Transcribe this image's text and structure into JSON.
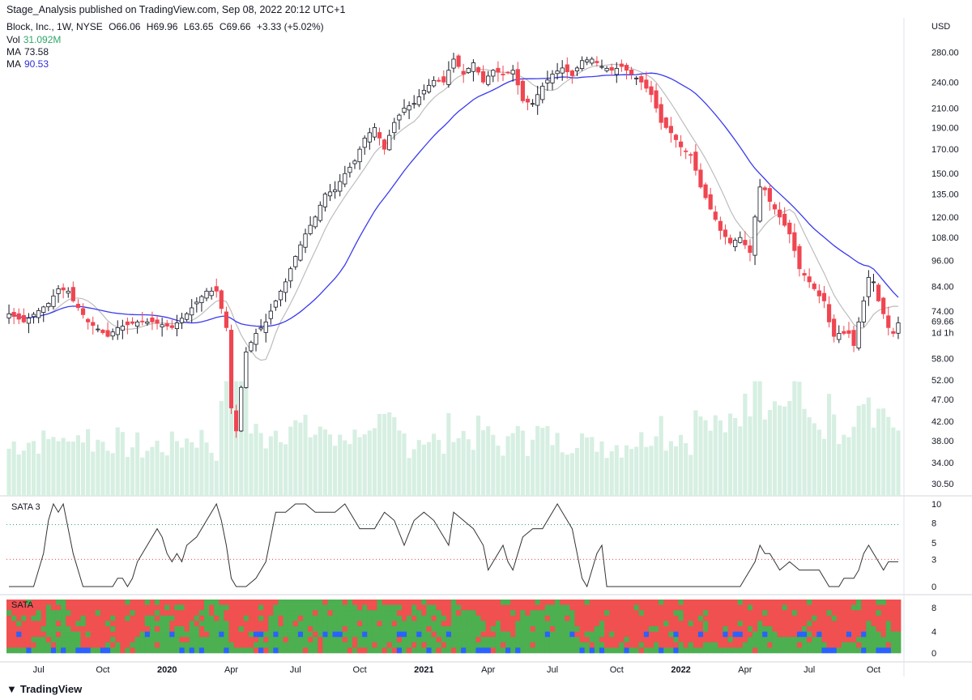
{
  "header": {
    "published": "Stage_Analysis published on TradingView.com, Sep 08, 2022 20:12 UTC+1",
    "symbol": "Block, Inc., 1W, NYSE",
    "ohlc": {
      "o": "O66.06",
      "h": "H69.96",
      "l": "L63.65",
      "c": "C69.66",
      "chg": "+3.33 (+5.02%)"
    },
    "vol_label": "Vol",
    "vol_value": "31.092M",
    "ma1_label": "MA",
    "ma1_value": "73.58",
    "ma2_label": "MA",
    "ma2_value": "90.53"
  },
  "colors": {
    "up": "#ffffff",
    "down": "#ef4651",
    "wick": "#131722",
    "ma_fast": "#bdbdbd",
    "ma_slow": "#3a3aef",
    "volume": "#d6efe2",
    "sata_line": "#333333",
    "sata_high": "#2ea76a",
    "sata_low": "#ef4651",
    "heat_green": "#4caf50",
    "heat_red": "#f05050",
    "heat_blue": "#2962ff"
  },
  "chart_data": [
    {
      "type": "candlestick",
      "title": "Block, Inc., 1W, NYSE",
      "currency_label": "USD",
      "y_ticks": [
        280,
        240,
        210,
        190,
        170,
        150,
        135,
        120,
        108,
        96,
        84,
        74,
        58,
        52,
        47,
        42,
        38,
        34,
        30.5
      ],
      "y_tick_labels": [
        "280.00",
        "240.00",
        "210.00",
        "190.00",
        "170.00",
        "150.00",
        "135.00",
        "120.00",
        "108.00",
        "96.00",
        "84.00",
        "74.00",
        "58.00",
        "52.00",
        "47.00",
        "42.00",
        "38.00",
        "34.00",
        "30.50"
      ],
      "y_scale": "log",
      "last_price_label": "69.66",
      "countdown_label": "1d 1h",
      "x_tick_labels": [
        "Jul",
        "Oct",
        "2020",
        "Apr",
        "Jul",
        "Oct",
        "2021",
        "Apr",
        "Jul",
        "Oct",
        "2022",
        "Apr",
        "Jul",
        "Oct"
      ],
      "x_tick_weeks": [
        6,
        19,
        32,
        45,
        58,
        71,
        84,
        97,
        110,
        123,
        136,
        149,
        162,
        175
      ],
      "price_anchors": [
        [
          0,
          73
        ],
        [
          3,
          70
        ],
        [
          8,
          77
        ],
        [
          10,
          83
        ],
        [
          12,
          82
        ],
        [
          13,
          78
        ],
        [
          16,
          70
        ],
        [
          20,
          65
        ],
        [
          22,
          68
        ],
        [
          26,
          70
        ],
        [
          29,
          70
        ],
        [
          33,
          68
        ],
        [
          36,
          73
        ],
        [
          40,
          82
        ],
        [
          42,
          82
        ],
        [
          43,
          75
        ],
        [
          44,
          68
        ],
        [
          45,
          45
        ],
        [
          46,
          40
        ],
        [
          48,
          60
        ],
        [
          50,
          66
        ],
        [
          52,
          70
        ],
        [
          54,
          78
        ],
        [
          56,
          86
        ],
        [
          58,
          98
        ],
        [
          60,
          110
        ],
        [
          62,
          120
        ],
        [
          64,
          135
        ],
        [
          66,
          138
        ],
        [
          68,
          150
        ],
        [
          70,
          160
        ],
        [
          72,
          180
        ],
        [
          74,
          190
        ],
        [
          76,
          170
        ],
        [
          78,
          195
        ],
        [
          80,
          210
        ],
        [
          82,
          215
        ],
        [
          84,
          230
        ],
        [
          86,
          242
        ],
        [
          88,
          240
        ],
        [
          90,
          270
        ],
        [
          92,
          250
        ],
        [
          94,
          265
        ],
        [
          96,
          240
        ],
        [
          98,
          255
        ],
        [
          100,
          250
        ],
        [
          102,
          255
        ],
        [
          104,
          218
        ],
        [
          106,
          215
        ],
        [
          108,
          235
        ],
        [
          110,
          250
        ],
        [
          112,
          258
        ],
        [
          114,
          248
        ],
        [
          116,
          268
        ],
        [
          118,
          270
        ],
        [
          120,
          260
        ],
        [
          122,
          255
        ],
        [
          124,
          260
        ],
        [
          126,
          250
        ],
        [
          128,
          240
        ],
        [
          130,
          225
        ],
        [
          132,
          195
        ],
        [
          134,
          185
        ],
        [
          136,
          172
        ],
        [
          138,
          165
        ],
        [
          140,
          140
        ],
        [
          142,
          125
        ],
        [
          144,
          112
        ],
        [
          146,
          105
        ],
        [
          148,
          108
        ],
        [
          150,
          100
        ],
        [
          152,
          140
        ],
        [
          153,
          138
        ],
        [
          154,
          130
        ],
        [
          156,
          120
        ],
        [
          158,
          110
        ],
        [
          160,
          92
        ],
        [
          162,
          86
        ],
        [
          164,
          80
        ],
        [
          165,
          78
        ],
        [
          166,
          70
        ],
        [
          167,
          65
        ],
        [
          168,
          66
        ],
        [
          170,
          66
        ],
        [
          171,
          62
        ],
        [
          172,
          70
        ],
        [
          173,
          78
        ],
        [
          174,
          88
        ],
        [
          175,
          86
        ],
        [
          176,
          78
        ],
        [
          177,
          73
        ],
        [
          178,
          68
        ],
        [
          179,
          66
        ],
        [
          180,
          69.66
        ]
      ],
      "ma_fast": {
        "name": "MA",
        "last": 73.58
      },
      "ma_slow": {
        "name": "MA",
        "last": 90.53
      },
      "volume": {
        "name": "Vol",
        "last": "31.092M"
      }
    },
    {
      "type": "line",
      "title": "SATA 3",
      "y_ticks": [
        0,
        3,
        5,
        8,
        10
      ],
      "y_range": [
        0,
        10
      ],
      "ref_lines": [
        {
          "value": 7.5,
          "color": "sata_high"
        },
        {
          "value": 3.3,
          "color": "sata_low"
        }
      ],
      "anchors": [
        [
          0,
          0
        ],
        [
          3,
          0
        ],
        [
          5,
          0
        ],
        [
          7,
          4
        ],
        [
          8,
          8
        ],
        [
          9,
          10
        ],
        [
          10,
          9
        ],
        [
          11,
          10
        ],
        [
          12,
          7
        ],
        [
          13,
          4
        ],
        [
          14,
          2
        ],
        [
          15,
          0
        ],
        [
          17,
          0
        ],
        [
          20,
          0
        ],
        [
          21,
          0
        ],
        [
          22,
          1
        ],
        [
          23,
          1
        ],
        [
          24,
          0
        ],
        [
          25,
          1
        ],
        [
          26,
          3
        ],
        [
          28,
          5
        ],
        [
          30,
          7
        ],
        [
          31,
          6
        ],
        [
          32,
          4
        ],
        [
          33,
          3
        ],
        [
          34,
          4
        ],
        [
          35,
          3
        ],
        [
          36,
          5
        ],
        [
          38,
          6
        ],
        [
          40,
          8
        ],
        [
          42,
          10
        ],
        [
          43,
          8
        ],
        [
          44,
          5
        ],
        [
          45,
          1
        ],
        [
          46,
          0
        ],
        [
          48,
          0
        ],
        [
          50,
          1
        ],
        [
          52,
          3
        ],
        [
          54,
          9
        ],
        [
          56,
          9
        ],
        [
          58,
          10
        ],
        [
          60,
          10
        ],
        [
          62,
          9
        ],
        [
          64,
          9
        ],
        [
          66,
          9
        ],
        [
          68,
          10
        ],
        [
          69,
          9
        ],
        [
          70,
          8
        ],
        [
          71,
          7
        ],
        [
          72,
          7
        ],
        [
          74,
          7
        ],
        [
          76,
          9
        ],
        [
          78,
          8
        ],
        [
          80,
          5
        ],
        [
          82,
          8
        ],
        [
          84,
          9
        ],
        [
          86,
          8
        ],
        [
          88,
          6
        ],
        [
          89,
          5
        ],
        [
          90,
          9
        ],
        [
          92,
          8
        ],
        [
          94,
          7
        ],
        [
          96,
          5
        ],
        [
          97,
          2
        ],
        [
          98,
          3
        ],
        [
          100,
          5
        ],
        [
          101,
          3
        ],
        [
          102,
          2
        ],
        [
          104,
          6
        ],
        [
          106,
          7
        ],
        [
          108,
          7
        ],
        [
          110,
          9
        ],
        [
          111,
          10
        ],
        [
          112,
          9
        ],
        [
          114,
          7
        ],
        [
          115,
          4
        ],
        [
          116,
          1
        ],
        [
          117,
          0
        ],
        [
          118,
          2
        ],
        [
          119,
          4
        ],
        [
          120,
          5
        ],
        [
          121,
          0
        ],
        [
          123,
          0
        ],
        [
          130,
          0
        ],
        [
          140,
          0
        ],
        [
          148,
          0
        ],
        [
          150,
          2
        ],
        [
          151,
          3
        ],
        [
          152,
          5
        ],
        [
          153,
          4
        ],
        [
          154,
          4
        ],
        [
          155,
          3
        ],
        [
          156,
          2
        ],
        [
          158,
          3
        ],
        [
          160,
          2
        ],
        [
          162,
          2
        ],
        [
          164,
          2
        ],
        [
          165,
          1
        ],
        [
          166,
          0
        ],
        [
          167,
          0
        ],
        [
          168,
          0
        ],
        [
          169,
          1
        ],
        [
          170,
          1
        ],
        [
          171,
          1
        ],
        [
          172,
          2
        ],
        [
          173,
          4
        ],
        [
          174,
          5
        ],
        [
          175,
          4
        ],
        [
          176,
          3
        ],
        [
          177,
          2
        ],
        [
          178,
          3
        ]
      ]
    },
    {
      "type": "heatmap",
      "title": "SATA",
      "y_ticks": [
        0,
        4,
        8
      ],
      "rows": 10,
      "categories": [
        "green",
        "red",
        "blue"
      ]
    }
  ]
}
